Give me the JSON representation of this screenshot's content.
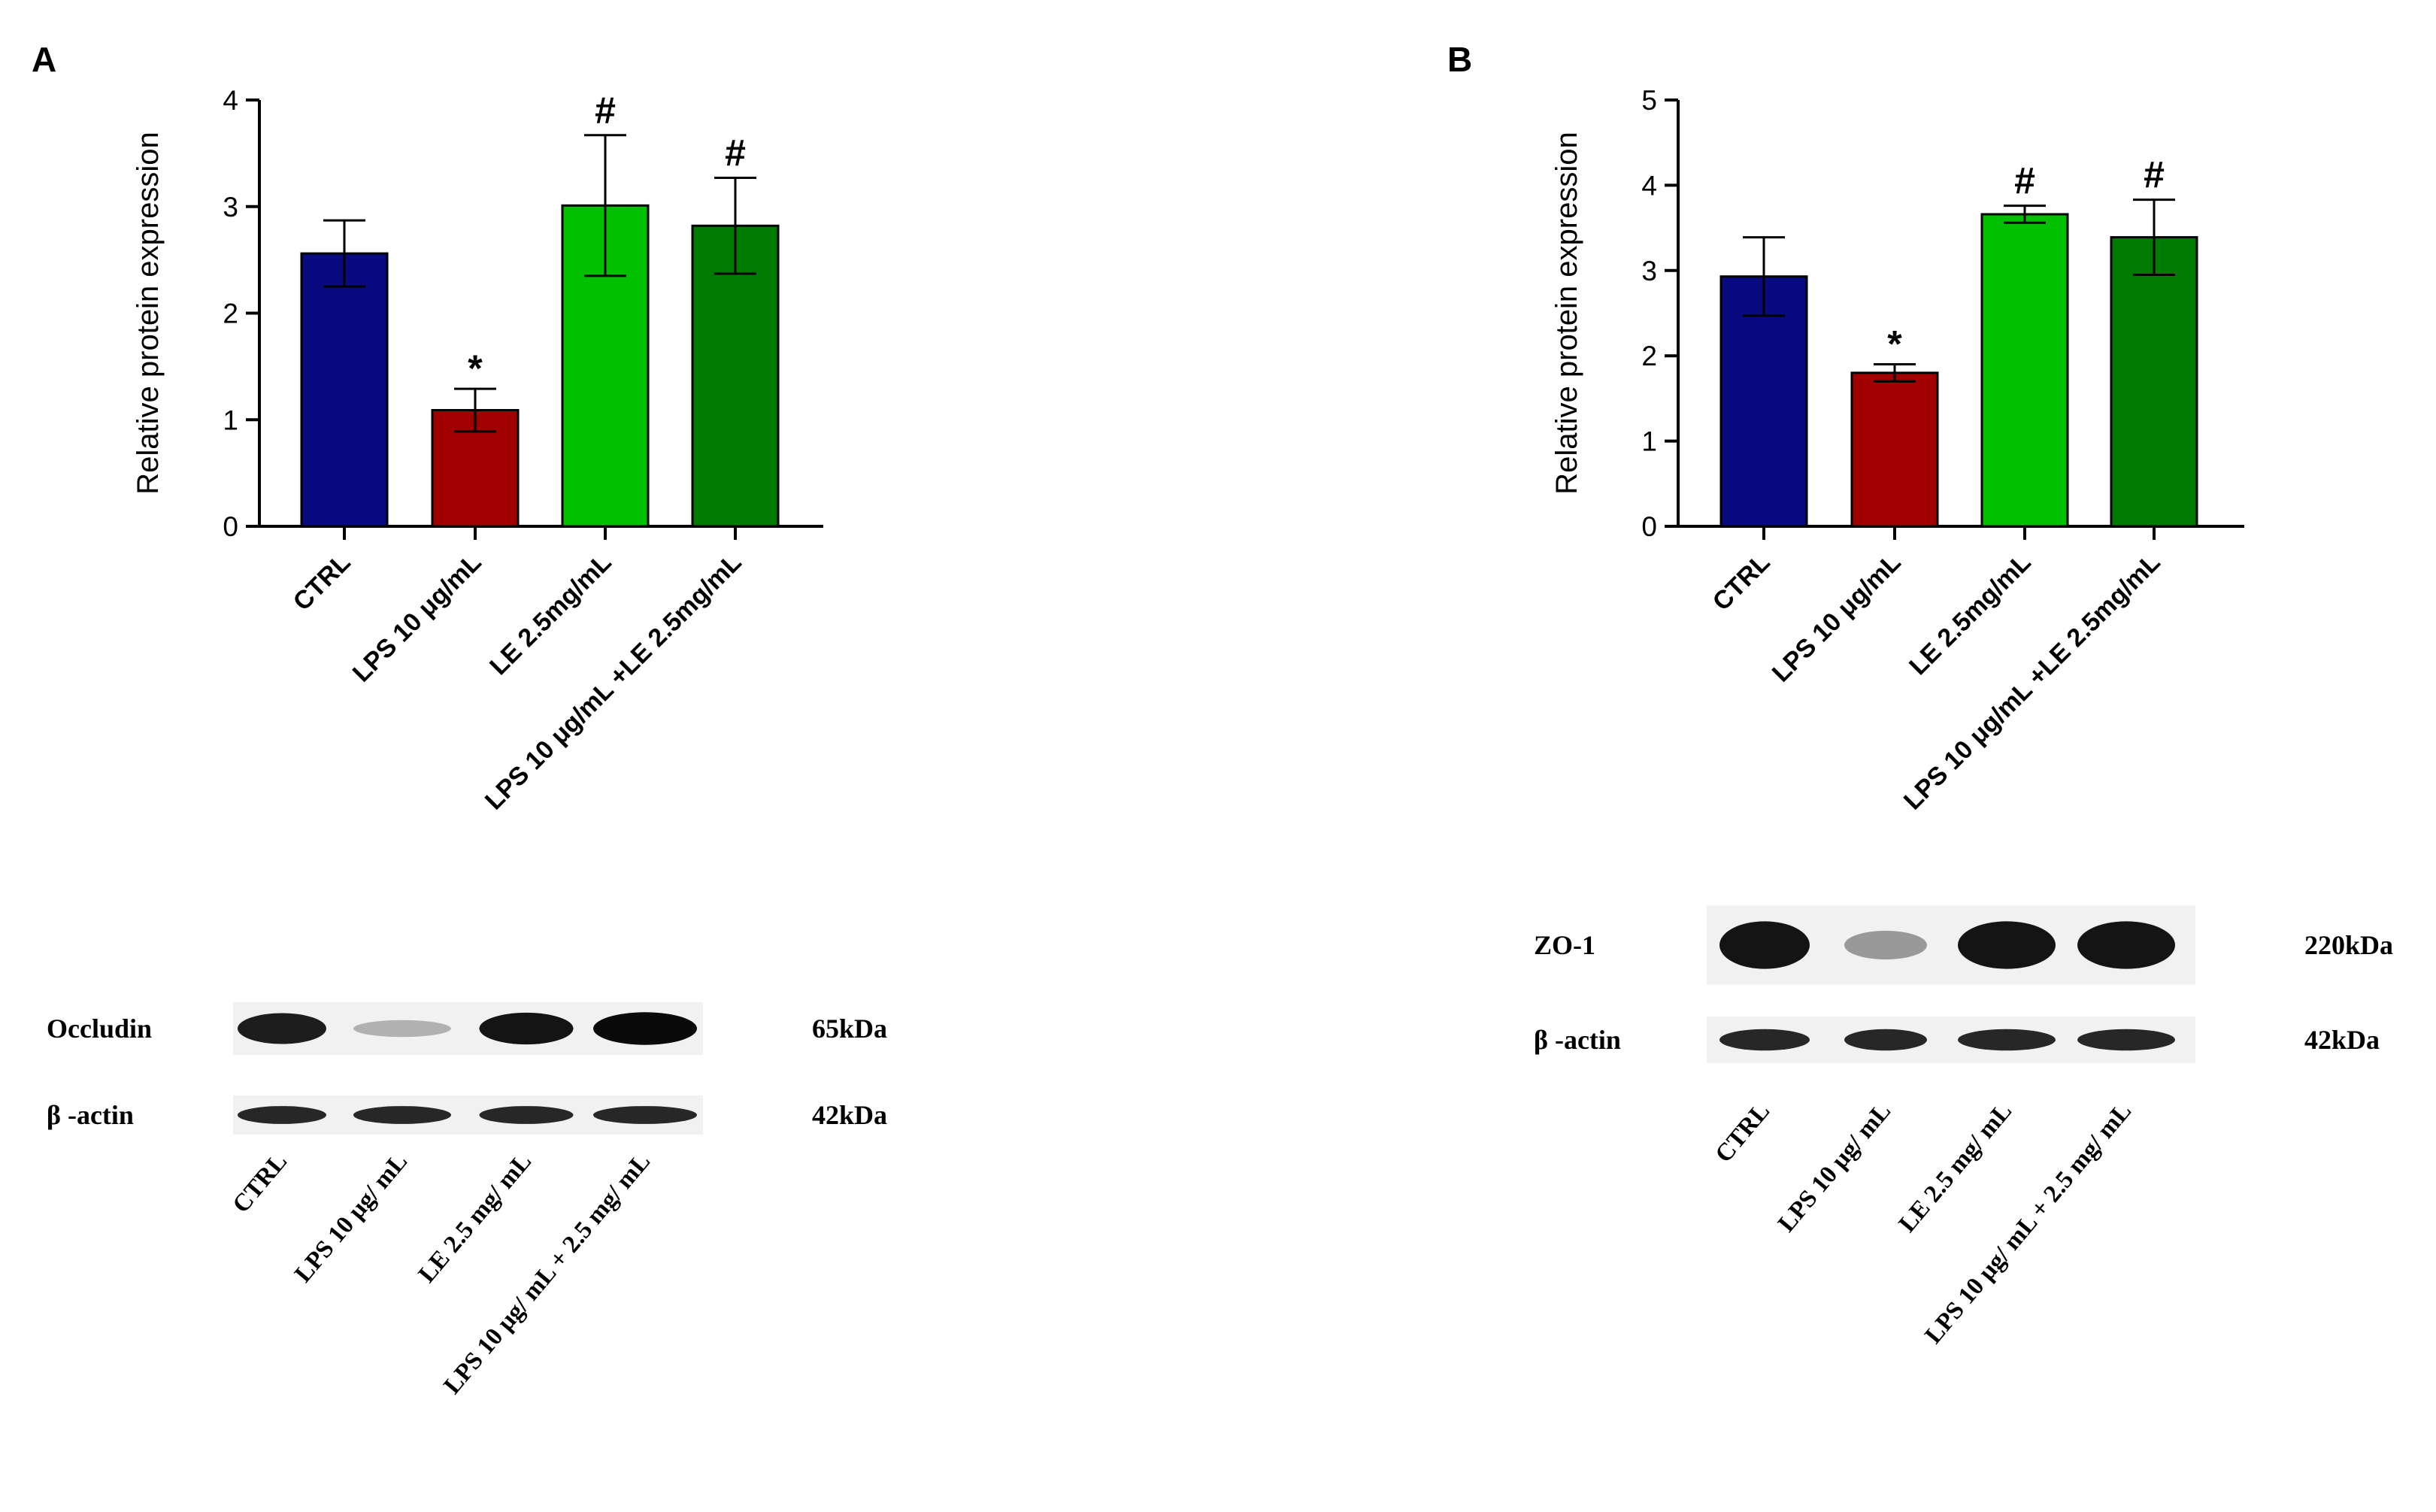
{
  "chart_data": [
    {
      "panel": "A",
      "type": "bar",
      "ylabel": "Relative protein expression",
      "xlabel": "",
      "ylim": [
        0,
        4
      ],
      "yticks": [
        0,
        1,
        2,
        3,
        4
      ],
      "categories": [
        "CTRL",
        "LPS 10 μg/mL",
        "LE 2.5mg/mL",
        "LPS 10 μg/mL +LE 2.5mg/mL"
      ],
      "values": [
        2.56,
        1.09,
        3.01,
        2.82
      ],
      "errors": [
        0.31,
        0.2,
        0.66,
        0.45
      ],
      "colors": [
        "#0a0a80",
        "#a00000",
        "#00c000",
        "#007a00"
      ],
      "annotations": [
        "",
        "*",
        "#",
        "#"
      ],
      "blot": {
        "rows": [
          {
            "protein": "Occludin",
            "kda": "65kDa",
            "intensity": [
              0.9,
              0.12,
              0.95,
              1.0
            ]
          },
          {
            "protein": "β -actin",
            "kda": "42kDa",
            "intensity": [
              0.85,
              0.85,
              0.85,
              0.85
            ]
          }
        ],
        "lanes": [
          "CTRL",
          "LPS 10 μg/ mL",
          "LE 2.5 mg/ mL",
          "LPS 10 μg/ mL + 2.5 mg/ mL"
        ]
      }
    },
    {
      "panel": "B",
      "type": "bar",
      "ylabel": "Relative protein expression",
      "xlabel": "",
      "ylim": [
        0,
        5
      ],
      "yticks": [
        0,
        1,
        2,
        3,
        4,
        5
      ],
      "categories": [
        "CTRL",
        "LPS 10 μg/mL",
        "LE 2.5mg/mL",
        "LPS 10 μg/mL +LE 2.5mg/mL"
      ],
      "values": [
        2.93,
        1.8,
        3.66,
        3.39
      ],
      "errors": [
        0.46,
        0.1,
        0.1,
        0.44
      ],
      "colors": [
        "#0a0a80",
        "#a00000",
        "#00c000",
        "#007a00"
      ],
      "annotations": [
        "",
        "*",
        "#",
        "#"
      ],
      "blot": {
        "rows": [
          {
            "protein": "ZO-1",
            "kda": "220kDa",
            "intensity": [
              0.95,
              0.25,
              0.95,
              0.95
            ]
          },
          {
            "protein": "β -actin",
            "kda": "42kDa",
            "intensity": [
              0.85,
              0.85,
              0.85,
              0.85
            ]
          }
        ],
        "lanes": [
          "CTRL",
          "LPS 10 μg/ mL",
          "LE 2.5 mg/ mL",
          "LPS 10 μg/ mL + 2.5 mg/ mL"
        ]
      }
    }
  ]
}
